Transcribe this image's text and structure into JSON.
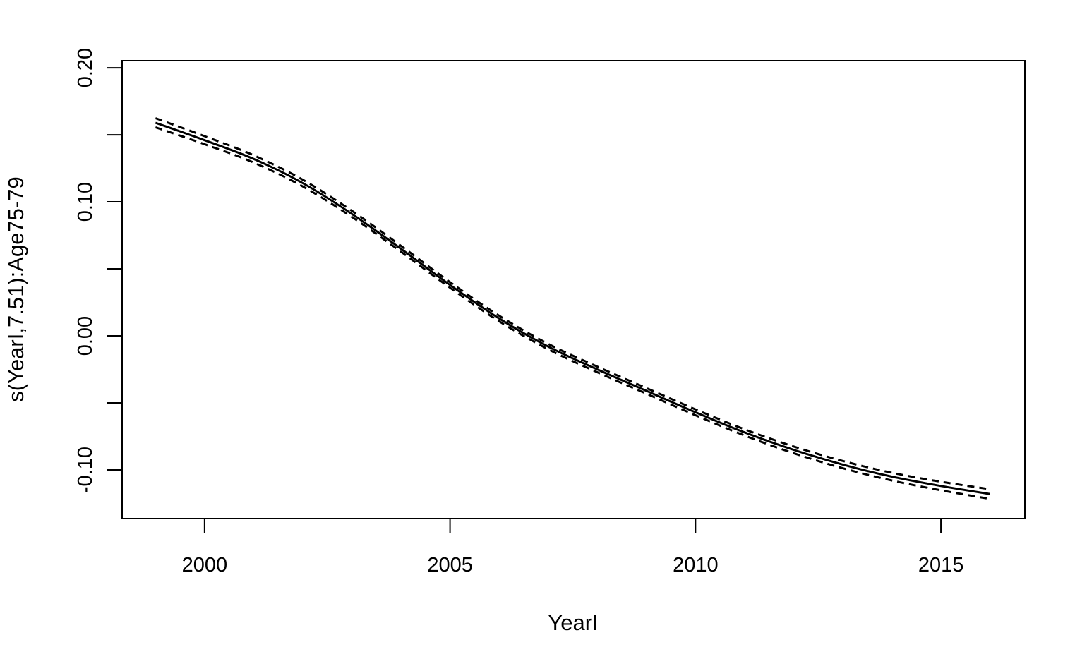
{
  "figure": {
    "background_color": "#ffffff",
    "foreground_color": "#000000"
  },
  "chart_data": {
    "type": "line",
    "title": "",
    "xlabel": "YearI",
    "ylabel": "s(YearI,7.51):Age75-79",
    "x": [
      1999,
      2000,
      2001,
      2002,
      2003,
      2004,
      2005,
      2006,
      2007,
      2008,
      2009,
      2010,
      2011,
      2012,
      2013,
      2014,
      2015,
      2016
    ],
    "series": [
      {
        "name": "smooth-estimate",
        "style": "solid",
        "values": [
          0.159,
          0.146,
          0.132,
          0.114,
          0.091,
          0.065,
          0.038,
          0.013,
          -0.008,
          -0.025,
          -0.041,
          -0.057,
          -0.072,
          -0.085,
          -0.096,
          -0.105,
          -0.112,
          -0.118
        ]
      },
      {
        "name": "upper-95ci",
        "style": "dashed",
        "values": [
          0.1624,
          0.149,
          0.1347,
          0.1165,
          0.0933,
          0.0672,
          0.0401,
          0.0151,
          -0.006,
          -0.0229,
          -0.0389,
          -0.0548,
          -0.0697,
          -0.0825,
          -0.0933,
          -0.1021,
          -0.1088,
          -0.1144
        ]
      },
      {
        "name": "lower-95ci",
        "style": "dashed",
        "values": [
          0.1556,
          0.143,
          0.1293,
          0.1115,
          0.0887,
          0.0628,
          0.0359,
          0.0109,
          -0.01,
          -0.0271,
          -0.0431,
          -0.0592,
          -0.0743,
          -0.0875,
          -0.0987,
          -0.1079,
          -0.1152,
          -0.1216
        ]
      }
    ],
    "x_axis": {
      "range": [
        1998.32,
        2016.71
      ],
      "ticks": [
        2000,
        2005,
        2010,
        2015
      ],
      "tick_labels": [
        "2000",
        "2005",
        "2010",
        "2015"
      ]
    },
    "y_axis": {
      "range": [
        -0.1363,
        0.2053
      ],
      "major_ticks": [
        0.2,
        0.1,
        0.0,
        -0.1
      ],
      "major_tick_labels": [
        "0.20",
        "0.10",
        "0.00",
        "-0.10"
      ],
      "minor_ticks": [
        0.15,
        0.05,
        -0.05
      ]
    },
    "grid": false,
    "legend": false,
    "line_color": "#000000"
  }
}
